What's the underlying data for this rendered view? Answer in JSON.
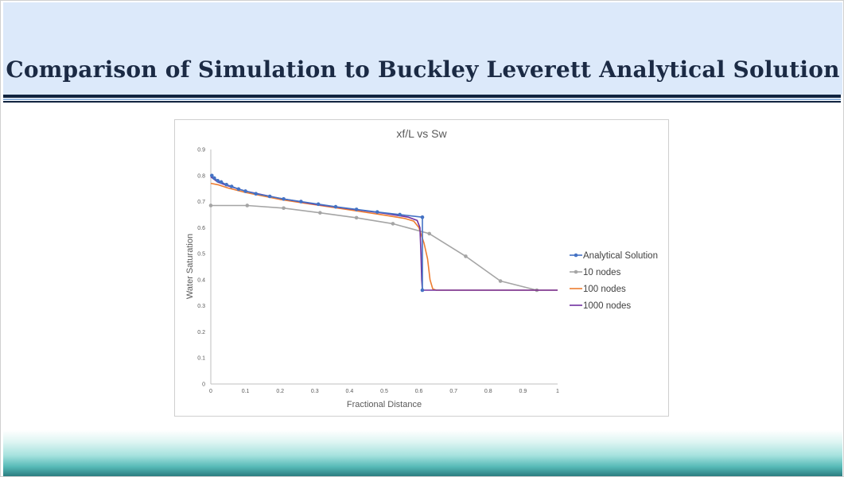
{
  "slide": {
    "title": "Comparison of Simulation to Buckley Leverett Analytical Solution"
  },
  "chart_data": {
    "type": "line",
    "title": "xf/L vs Sw",
    "xlabel": "Fractional Distance",
    "ylabel": "Water Saturation",
    "xlim": [
      0,
      1
    ],
    "ylim": [
      0,
      0.9
    ],
    "xticks": [
      "0",
      "0.1",
      "0.2",
      "0.3",
      "0.4",
      "0.5",
      "0.6",
      "0.7",
      "0.8",
      "0.9",
      "1"
    ],
    "yticks": [
      "0",
      "0.1",
      "0.2",
      "0.3",
      "0.4",
      "0.5",
      "0.6",
      "0.7",
      "0.8",
      "0.9"
    ],
    "grid": false,
    "legend_position": "right",
    "series": [
      {
        "name": "Analytical Solution",
        "color": "#4472c4",
        "markers": true,
        "points": [
          [
            0.003,
            0.8
          ],
          [
            0.01,
            0.79
          ],
          [
            0.02,
            0.78
          ],
          [
            0.03,
            0.775
          ],
          [
            0.045,
            0.765
          ],
          [
            0.06,
            0.758
          ],
          [
            0.08,
            0.748
          ],
          [
            0.1,
            0.74
          ],
          [
            0.13,
            0.73
          ],
          [
            0.17,
            0.72
          ],
          [
            0.21,
            0.71
          ],
          [
            0.26,
            0.7
          ],
          [
            0.31,
            0.69
          ],
          [
            0.36,
            0.68
          ],
          [
            0.42,
            0.67
          ],
          [
            0.48,
            0.66
          ],
          [
            0.545,
            0.65
          ],
          [
            0.61,
            0.64
          ],
          [
            0.61,
            0.36
          ]
        ]
      },
      {
        "name": "10 nodes",
        "color": "#a5a5a5",
        "markers": true,
        "points": [
          [
            0.0,
            0.685
          ],
          [
            0.105,
            0.685
          ],
          [
            0.21,
            0.675
          ],
          [
            0.315,
            0.657
          ],
          [
            0.42,
            0.638
          ],
          [
            0.525,
            0.615
          ],
          [
            0.63,
            0.577
          ],
          [
            0.735,
            0.49
          ],
          [
            0.835,
            0.395
          ],
          [
            0.94,
            0.36
          ]
        ]
      },
      {
        "name": "100 nodes",
        "color": "#ed7d31",
        "markers": false,
        "points": [
          [
            0.0,
            0.77
          ],
          [
            0.02,
            0.765
          ],
          [
            0.05,
            0.752
          ],
          [
            0.1,
            0.735
          ],
          [
            0.2,
            0.708
          ],
          [
            0.3,
            0.688
          ],
          [
            0.4,
            0.668
          ],
          [
            0.5,
            0.648
          ],
          [
            0.56,
            0.635
          ],
          [
            0.585,
            0.625
          ],
          [
            0.6,
            0.6
          ],
          [
            0.615,
            0.54
          ],
          [
            0.625,
            0.48
          ],
          [
            0.632,
            0.4
          ],
          [
            0.64,
            0.365
          ],
          [
            0.65,
            0.36
          ],
          [
            1.0,
            0.36
          ]
        ]
      },
      {
        "name": "1000 nodes",
        "color": "#7030a0",
        "markers": false,
        "points": [
          [
            0.0,
            0.795
          ],
          [
            0.02,
            0.775
          ],
          [
            0.05,
            0.76
          ],
          [
            0.1,
            0.74
          ],
          [
            0.2,
            0.712
          ],
          [
            0.3,
            0.69
          ],
          [
            0.4,
            0.672
          ],
          [
            0.5,
            0.655
          ],
          [
            0.57,
            0.64
          ],
          [
            0.595,
            0.628
          ],
          [
            0.603,
            0.6
          ],
          [
            0.606,
            0.5
          ],
          [
            0.608,
            0.4
          ],
          [
            0.61,
            0.36
          ],
          [
            1.0,
            0.36
          ]
        ]
      }
    ]
  }
}
